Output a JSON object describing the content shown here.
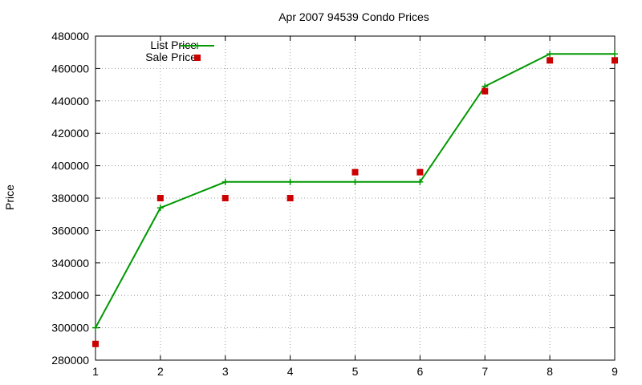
{
  "chart_data": {
    "type": "line",
    "title": "Apr 2007 94539 Condo Prices",
    "xlabel": "",
    "ylabel": "Price",
    "x": [
      1,
      2,
      3,
      4,
      5,
      6,
      7,
      8,
      9
    ],
    "x_ticks": [
      "1",
      "2",
      "3",
      "4",
      "5",
      "6",
      "7",
      "8",
      "9"
    ],
    "y_ticks": [
      "280000",
      "300000",
      "320000",
      "340000",
      "360000",
      "380000",
      "400000",
      "420000",
      "440000",
      "460000",
      "480000"
    ],
    "xlim": [
      1,
      9
    ],
    "ylim": [
      280000,
      480000
    ],
    "grid": true,
    "legend_position": "top-left",
    "series": [
      {
        "name": "List Price",
        "style": "line-with-plus-markers",
        "color": "#009900",
        "values": [
          300000,
          374000,
          390000,
          390000,
          390000,
          390000,
          449000,
          469000,
          469000
        ]
      },
      {
        "name": "Sale Price",
        "style": "square-points",
        "color": "#cc0000",
        "values": [
          290000,
          380000,
          380000,
          380000,
          396000,
          396000,
          446000,
          465000,
          465000
        ]
      }
    ]
  }
}
